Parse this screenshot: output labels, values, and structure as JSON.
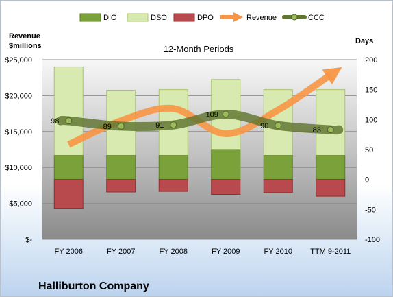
{
  "chart_data": {
    "type": "bar",
    "title": "12-Month Periods",
    "company": "Halliburton Company",
    "left_axis_label_line1": "Revenue",
    "left_axis_label_line2": "$millions",
    "right_axis_label": "Days",
    "categories": [
      "FY 2006",
      "FY 2007",
      "FY 2008",
      "FY 2009",
      "FY 2010",
      "TTM 9-2011"
    ],
    "left_axis": {
      "min": 0,
      "max": 25000,
      "ticks": [
        0,
        5000,
        10000,
        15000,
        20000,
        25000
      ],
      "tick_labels": [
        "$-",
        "$5,000",
        "$10,000",
        "$15,000",
        "$20,000",
        "$25,000"
      ]
    },
    "right_axis": {
      "min": -100,
      "max": 200,
      "ticks": [
        -100,
        -50,
        0,
        50,
        100,
        150,
        200
      ],
      "tick_labels": [
        "-100",
        "-50",
        "0",
        "50",
        "100",
        "150",
        "200"
      ]
    },
    "grid": true,
    "legend_position": "top",
    "series": [
      {
        "name": "DIO",
        "axis": "right",
        "kind": "stacked-bar",
        "color": "#7aa13a",
        "values": [
          40,
          40,
          40,
          50,
          40,
          40
        ]
      },
      {
        "name": "DSO",
        "axis": "right",
        "kind": "stacked-bar",
        "color": "#d9eab0",
        "values": [
          148,
          109,
          110,
          117,
          110,
          110
        ]
      },
      {
        "name": "DPO",
        "axis": "right",
        "kind": "stacked-bar-negative",
        "color": "#b8494c",
        "values": [
          -48,
          -21,
          -20,
          -25,
          -22,
          -28
        ]
      },
      {
        "name": "Revenue",
        "axis": "left",
        "kind": "arrow",
        "color": "#f79646",
        "values": [
          13200,
          16500,
          18200,
          14700,
          18000,
          22900
        ]
      },
      {
        "name": "CCC",
        "axis": "right",
        "kind": "line",
        "color": "#5f7530",
        "values": [
          98,
          89,
          91,
          109,
          90,
          83
        ],
        "labels": [
          "98",
          "89",
          "91",
          "109",
          "90",
          "83"
        ]
      }
    ]
  }
}
